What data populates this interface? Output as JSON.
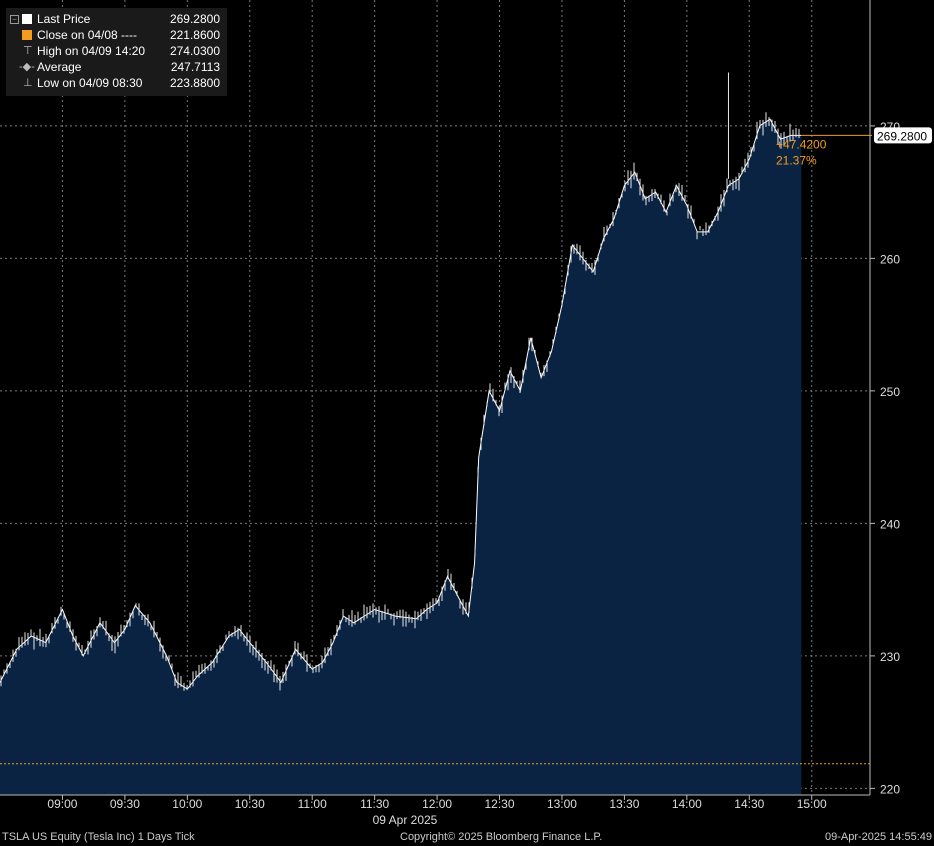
{
  "legend": {
    "items": [
      {
        "label": "Last Price",
        "value": "269.2800",
        "color": "#ffffff"
      },
      {
        "label": "Close on 04/08 ----",
        "value": "221.8600",
        "color": "#f39c1f"
      },
      {
        "label": "High on 04/09 14:20",
        "value": "274.0300"
      },
      {
        "label": "Average",
        "value": "247.7113"
      },
      {
        "label": "Low on 04/09 08:30",
        "value": "223.8800"
      }
    ]
  },
  "annotations": {
    "last_price_tag": "269.2800",
    "change": "+47.4200",
    "change_pct": "21.37%"
  },
  "footer": {
    "left": "TSLA US Equity (Tesla Inc) 1 Days  Tick",
    "center": "Copyright© 2025 Bloomberg Finance L.P.",
    "right": "09-Apr-2025 14:55:49"
  },
  "colors": {
    "area_fill": "#0a2342",
    "price_line": "#ffffff",
    "close_line": "#f39c1f",
    "grid": "#7a7a7a",
    "axis_text": "#dddddd"
  },
  "chart_data": {
    "type": "area",
    "title": "TSLA US Equity (Tesla Inc) 1 Days  Tick",
    "xlabel": "09 Apr 2025",
    "ylabel": "",
    "x_ticks": [
      "09:00",
      "09:30",
      "10:00",
      "10:30",
      "11:00",
      "11:30",
      "12:00",
      "12:30",
      "13:00",
      "13:30",
      "14:00",
      "14:30",
      "15:00"
    ],
    "y_ticks": [
      220,
      230,
      240,
      250,
      260,
      270
    ],
    "ylim": [
      219.5,
      279.5
    ],
    "xlim": [
      "08:30",
      "15:28"
    ],
    "grid": true,
    "legend_position": "top-left",
    "previous_close": 221.86,
    "last_price": 269.28,
    "change": 47.42,
    "change_pct": 21.37,
    "series": [
      {
        "name": "Last Price",
        "x": [
          "08:30",
          "08:38",
          "08:45",
          "08:52",
          "09:00",
          "09:05",
          "09:10",
          "09:18",
          "09:25",
          "09:30",
          "09:35",
          "09:42",
          "09:50",
          "09:55",
          "10:00",
          "10:05",
          "10:12",
          "10:20",
          "10:25",
          "10:30",
          "10:38",
          "10:45",
          "10:52",
          "11:00",
          "11:05",
          "11:10",
          "11:15",
          "11:20",
          "11:25",
          "11:30",
          "11:40",
          "11:50",
          "11:55",
          "12:00",
          "12:05",
          "12:10",
          "12:15",
          "12:18",
          "12:20",
          "12:25",
          "12:30",
          "12:35",
          "12:40",
          "12:45",
          "12:50",
          "12:55",
          "13:00",
          "13:05",
          "13:10",
          "13:15",
          "13:20",
          "13:25",
          "13:30",
          "13:35",
          "13:40",
          "13:45",
          "13:50",
          "13:55",
          "14:00",
          "14:05",
          "14:10",
          "14:15",
          "14:20",
          "14:25",
          "14:30",
          "14:35",
          "14:40",
          "14:45",
          "14:50",
          "14:55"
        ],
        "values": [
          228.0,
          230.5,
          231.5,
          231.0,
          233.5,
          231.5,
          230.0,
          232.5,
          231.0,
          232.0,
          233.8,
          232.5,
          230.0,
          228.0,
          227.5,
          228.5,
          229.5,
          231.5,
          232.0,
          231.0,
          229.5,
          228.0,
          230.5,
          229.0,
          229.5,
          231.0,
          233.0,
          232.5,
          233.0,
          233.5,
          233.0,
          232.8,
          233.5,
          234.0,
          236.0,
          234.5,
          233.0,
          237.0,
          245.0,
          250.0,
          248.5,
          251.5,
          250.0,
          254.0,
          251.0,
          253.0,
          256.5,
          261.0,
          260.0,
          259.0,
          261.5,
          263.0,
          265.5,
          266.5,
          264.5,
          265.0,
          263.5,
          265.5,
          264.0,
          262.0,
          262.0,
          263.5,
          265.5,
          266.0,
          267.5,
          270.0,
          270.5,
          269.0,
          269.28,
          269.28
        ],
        "high": 274.03,
        "low": 223.88,
        "average": 247.7113
      }
    ]
  }
}
